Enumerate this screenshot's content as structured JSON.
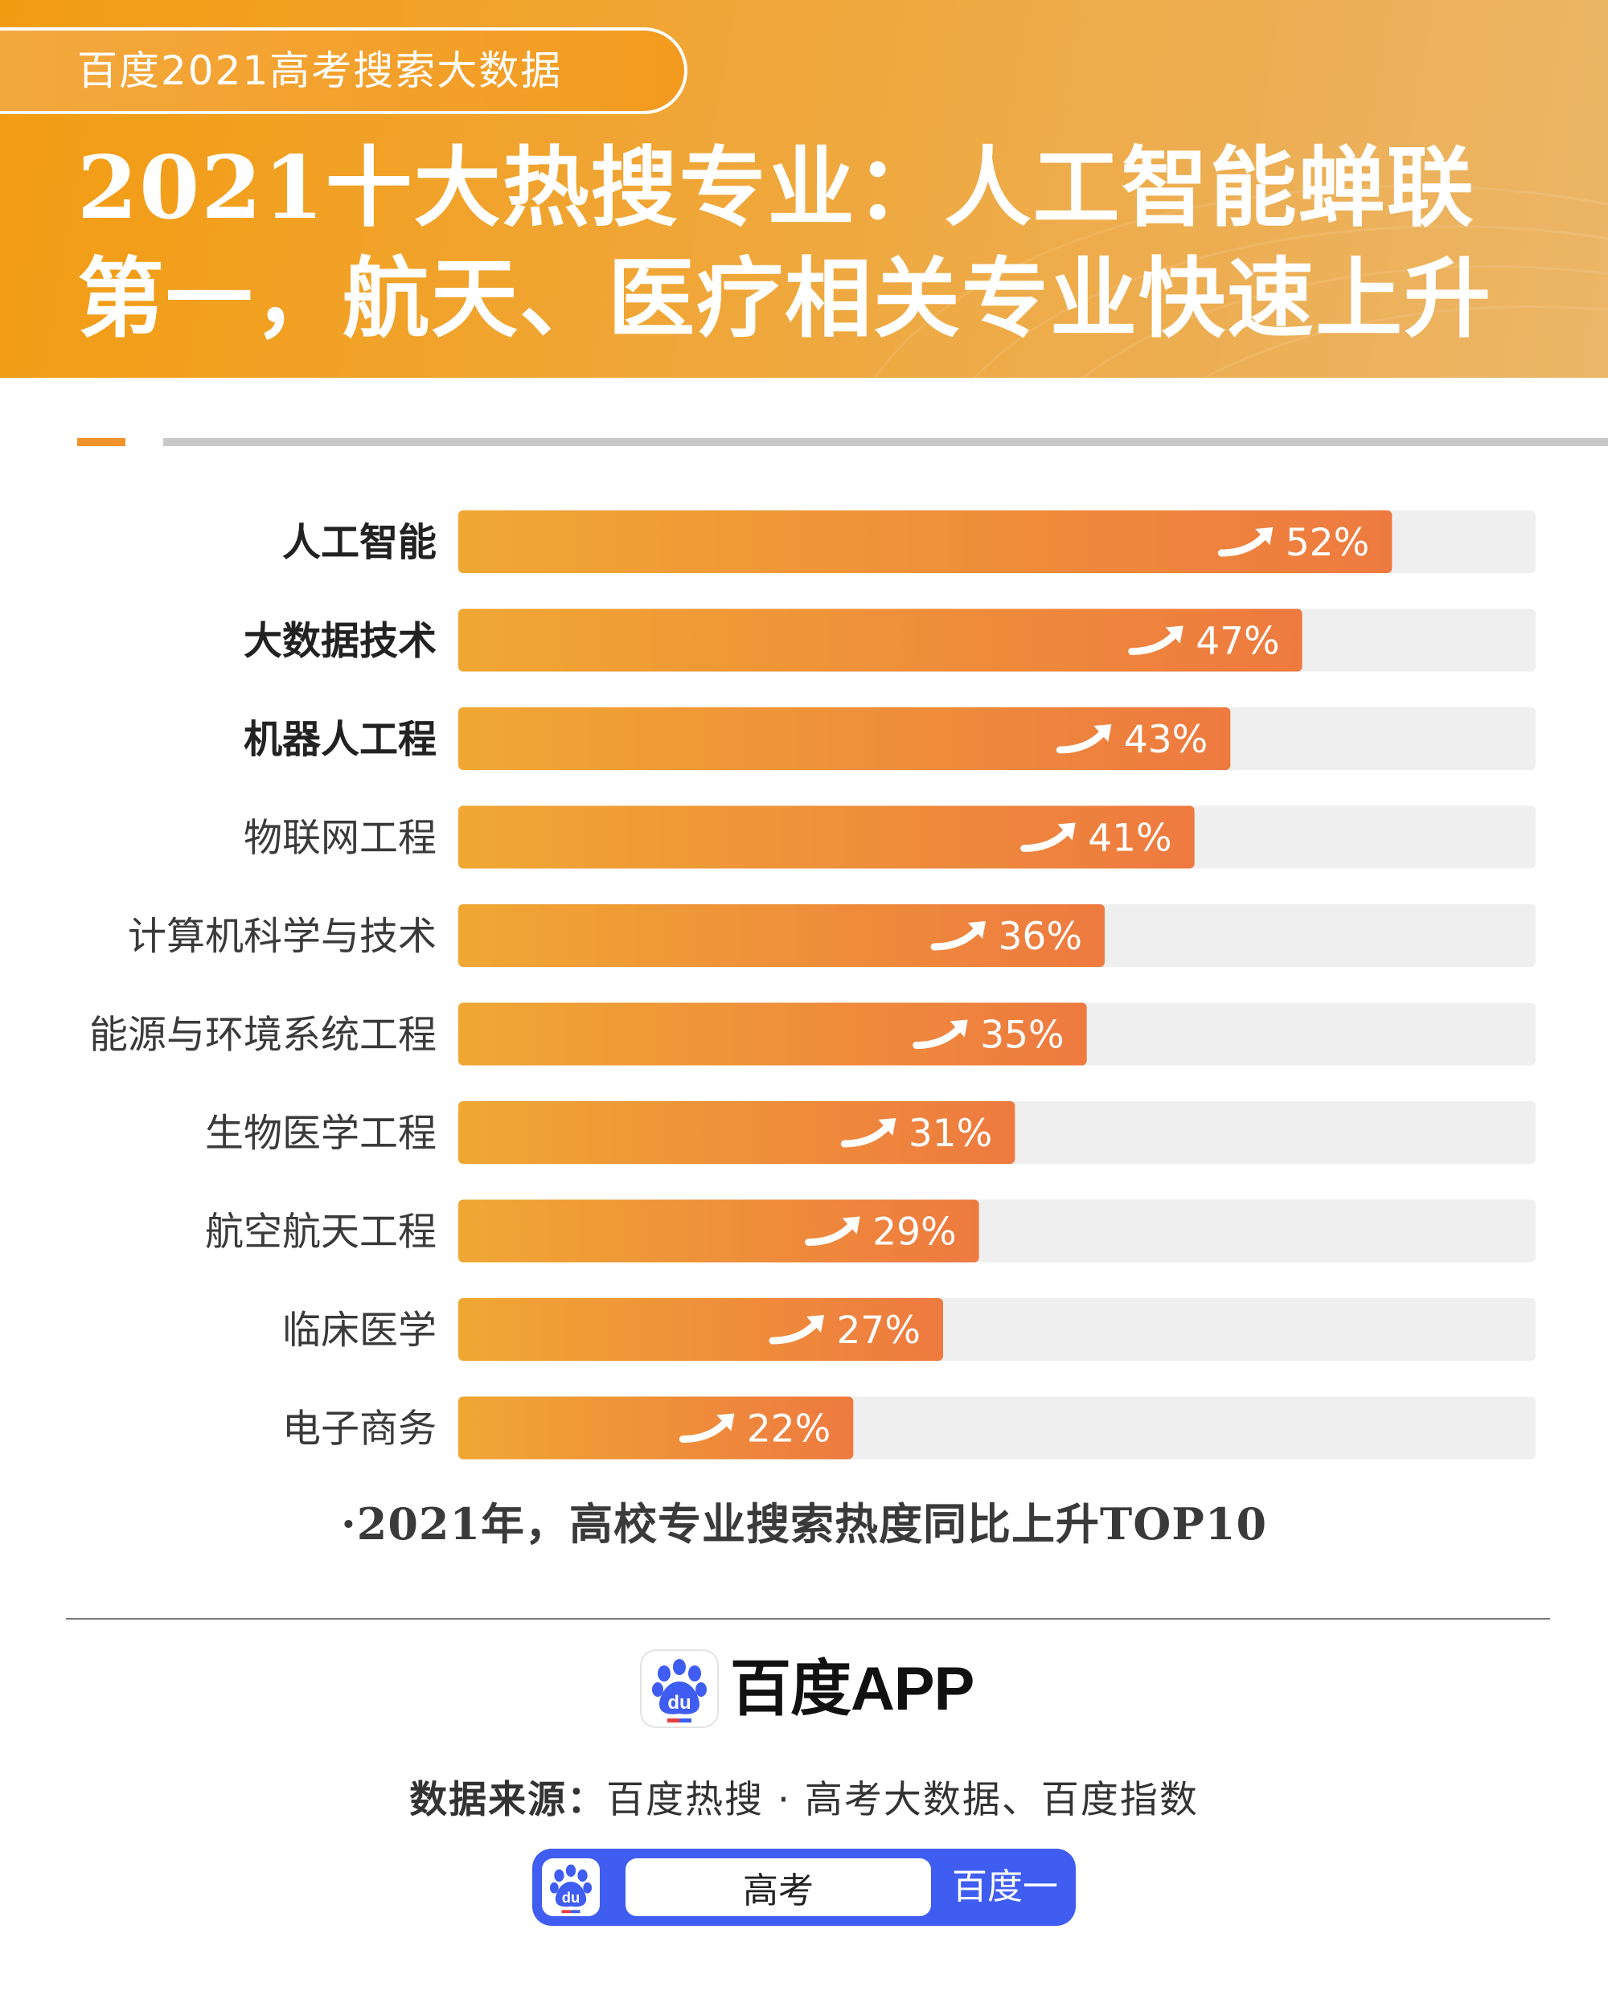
{
  "header": {
    "tag": "百度2021高考搜索大数据",
    "title_line1": "2021十大热搜专业：人工智能蝉联",
    "title_line2": "第一，航天、医疗相关专业快速上升"
  },
  "chart_data": {
    "type": "bar",
    "orientation": "horizontal",
    "categories": [
      "人工智能",
      "大数据技术",
      "机器人工程",
      "物联网工程",
      "计算机科学与技术",
      "能源与环境系统工程",
      "生物医学工程",
      "航空航天工程",
      "临床医学",
      "电子商务"
    ],
    "values": [
      52,
      47,
      43,
      41,
      36,
      35,
      31,
      29,
      27,
      22
    ],
    "value_labels": [
      "52%",
      "47%",
      "43%",
      "41%",
      "36%",
      "35%",
      "31%",
      "29%",
      "27%",
      "22%"
    ],
    "highlighted": [
      "人工智能",
      "大数据技术",
      "机器人工程"
    ],
    "xlim": [
      0,
      60
    ],
    "bar_gradient": [
      "#f0a733",
      "#ee7a40"
    ],
    "track_color": "#efefef",
    "note": "·2021年，高校专业搜索热度同比上升TOP10"
  },
  "footer": {
    "app_name": "百度APP",
    "source_label": "数据来源：",
    "source_text": "百度热搜 · 高考大数据、百度指数",
    "search_value": "高考",
    "search_button": "百度一下",
    "logo_icon": "baidu-paw-icon",
    "brand_color": "#3f5df1"
  }
}
